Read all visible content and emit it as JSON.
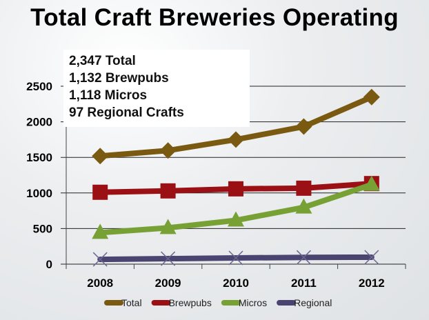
{
  "title": "Total Craft Breweries Operating",
  "summary": [
    "2,347 Total",
    "1,132 Brewpubs",
    "1,118 Micros",
    "97 Regional Crafts"
  ],
  "chart_data": {
    "type": "line",
    "title": "Total Craft Breweries Operating",
    "categories": [
      "2008",
      "2009",
      "2010",
      "2011",
      "2012"
    ],
    "ylim": [
      0,
      2500
    ],
    "yticks": [
      0,
      500,
      1000,
      1500,
      2000,
      2500
    ],
    "grid": true,
    "legend_position": "bottom",
    "series": [
      {
        "name": "Total",
        "color": "#7a5a10",
        "marker": "diamond",
        "values": [
          1519,
          1596,
          1750,
          1933,
          2347
        ]
      },
      {
        "name": "Brewpubs",
        "color": "#9a1015",
        "marker": "square",
        "values": [
          1010,
          1029,
          1058,
          1067,
          1132
        ]
      },
      {
        "name": "Micros",
        "color": "#77a035",
        "marker": "triangle",
        "values": [
          442,
          510,
          615,
          798,
          1118
        ]
      },
      {
        "name": "Regional",
        "color": "#4a4470",
        "marker": "x",
        "values": [
          67,
          77,
          87,
          95,
          97
        ]
      }
    ]
  }
}
